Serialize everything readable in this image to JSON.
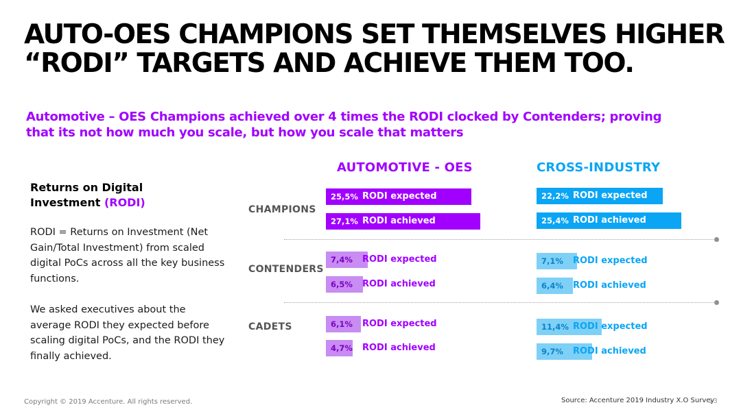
{
  "title": {
    "line1": "AUTO-OES CHAMPIONS SET THEMSELVES HIGHER",
    "line2": "“RODI” TARGETS AND ACHIEVE THEM TOO."
  },
  "subtitle": {
    "line1": "Automotive – OES Champions achieved over 4 times the RODI clocked by Contenders; proving",
    "line2": "that its not how much you scale, but how you scale that matters"
  },
  "left": {
    "heading_main": "Returns on Digital",
    "heading_line2": "Investment",
    "heading_accent": "(RODI)",
    "paragraph1": "RODI = Returns on Investment (Net Gain/Total Investment) from scaled digital PoCs across all the key business functions.",
    "paragraph2": "We asked executives about the average RODI they expected before scaling digital PoCs, and the RODI they finally achieved."
  },
  "footer": {
    "copyright": "Copyright © 2019 Accenture. All rights reserved.",
    "source": "Source: Accenture 2019 Industry X.O Survey",
    "page": "13"
  },
  "colors": {
    "purple_dark": "#a100ff",
    "purple_light": "#c88cf2",
    "blue_dark": "#0aa5f5",
    "blue_light": "#7fd0f7"
  },
  "chart_data": [
    {
      "type": "bar",
      "title": "AUTOMOTIVE - OES",
      "categories": [
        "CHAMPIONS",
        "CONTENDERS",
        "CADETS"
      ],
      "unit": "%",
      "series": [
        {
          "name": "RODI expected",
          "values": [
            25.5,
            7.4,
            6.1
          ],
          "labels": [
            "25,5%",
            "7,4%",
            "6,1%"
          ]
        },
        {
          "name": "RODI achieved",
          "values": [
            27.1,
            6.5,
            4.7
          ],
          "labels": [
            "27,1%",
            "6,5%",
            "4,7%"
          ]
        }
      ]
    },
    {
      "type": "bar",
      "title": "CROSS-INDUSTRY",
      "categories": [
        "CHAMPIONS",
        "CONTENDERS",
        "CADETS"
      ],
      "unit": "%",
      "series": [
        {
          "name": "RODI expected",
          "values": [
            22.2,
            7.1,
            11.4
          ],
          "labels": [
            "22,2%",
            "7,1%",
            "11,4%"
          ]
        },
        {
          "name": "RODI achieved",
          "values": [
            25.4,
            6.4,
            9.7
          ],
          "labels": [
            "25,4%",
            "6,4%",
            "9,7%"
          ]
        }
      ]
    }
  ]
}
